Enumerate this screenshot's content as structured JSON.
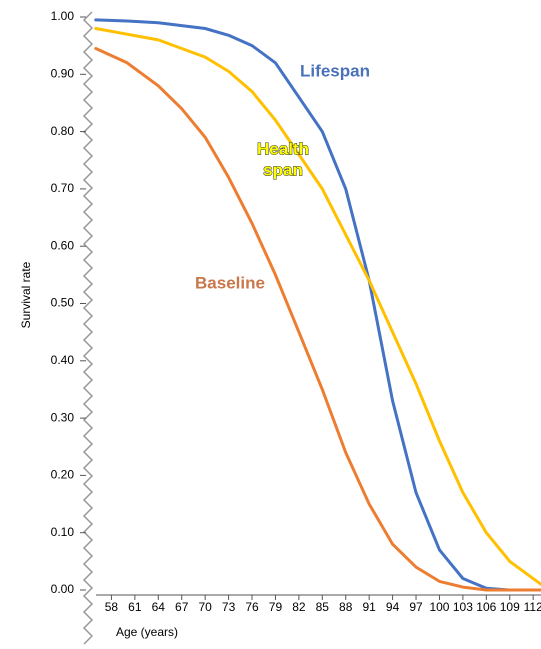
{
  "chart_data": {
    "type": "line",
    "xlabel": "Age (years)",
    "ylabel": "Survival rate",
    "x": [
      56,
      60,
      64,
      67,
      70,
      73,
      76,
      79,
      82,
      85,
      88,
      91,
      94,
      97,
      100,
      103,
      106,
      109,
      113
    ],
    "series": [
      {
        "name": "Lifespan",
        "color": "#4472c4",
        "values": [
          0.995,
          0.993,
          0.99,
          0.985,
          0.98,
          0.968,
          0.95,
          0.92,
          0.86,
          0.8,
          0.7,
          0.54,
          0.33,
          0.17,
          0.07,
          0.02,
          0.003,
          0,
          0
        ]
      },
      {
        "name": "Health span",
        "color": "#ffc000",
        "values": [
          0.98,
          0.97,
          0.96,
          0.945,
          0.93,
          0.905,
          0.87,
          0.82,
          0.76,
          0.7,
          0.62,
          0.54,
          0.45,
          0.36,
          0.26,
          0.17,
          0.1,
          0.05,
          0.01
        ]
      },
      {
        "name": "Baseline",
        "color": "#ed7d31",
        "values": [
          0.945,
          0.92,
          0.88,
          0.84,
          0.79,
          0.72,
          0.64,
          0.55,
          0.45,
          0.35,
          0.24,
          0.15,
          0.08,
          0.04,
          0.015,
          0.005,
          0,
          0,
          0
        ]
      }
    ],
    "annotations": [
      {
        "lines": [
          "Lifespan"
        ]
      },
      {
        "lines": [
          "Health",
          "span"
        ]
      },
      {
        "lines": [
          "Baseline"
        ]
      }
    ],
    "xlim": [
      55,
      113
    ],
    "xticks": [
      58,
      61,
      64,
      67,
      70,
      73,
      76,
      79,
      82,
      85,
      88,
      91,
      94,
      97,
      100,
      103,
      106,
      109,
      112
    ],
    "ylim": [
      0,
      1
    ],
    "yticks": [
      {
        "value": 0,
        "label": "0.00"
      },
      {
        "value": 0.1,
        "label": "0.10"
      },
      {
        "value": 0.2,
        "label": "0.20"
      },
      {
        "value": 0.3,
        "label": "0.30"
      },
      {
        "value": 0.4,
        "label": "0.40"
      },
      {
        "value": 0.5,
        "label": "0.50"
      },
      {
        "value": 0.6,
        "label": "0.60"
      },
      {
        "value": 0.7,
        "label": "0.70"
      },
      {
        "value": 0.8,
        "label": "0.80"
      },
      {
        "value": 0.9,
        "label": "0.90"
      },
      {
        "value": 1,
        "label": "1.00"
      }
    ],
    "grid": false
  }
}
